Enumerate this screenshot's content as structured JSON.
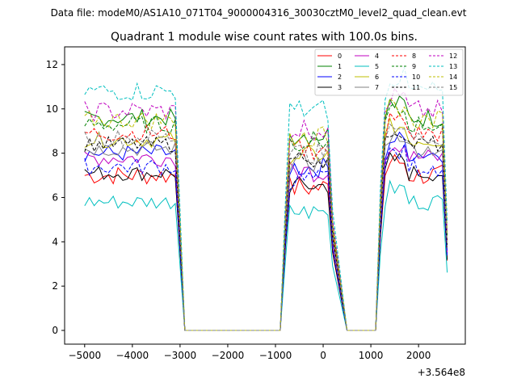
{
  "chart_data": {
    "type": "line",
    "suptitle": "Data file: modeM0/AS1A10_071T04_9000004316_30030cztM0_level2_quad_clean.evt",
    "title": "Quadrant 1 module wise count rates with 100.0s bins.",
    "xlabel": "",
    "ylabel": "",
    "offset_text": "+3.564e8",
    "xlim": [
      -5420,
      2980
    ],
    "ylim": [
      -0.62,
      12.8
    ],
    "xticks": [
      -5000,
      -4000,
      -3000,
      -2000,
      -1000,
      0,
      1000,
      2000
    ],
    "xtick_labels": [
      "−5000",
      "−4000",
      "−3000",
      "−2000",
      "−1000",
      "0",
      "1000",
      "2000"
    ],
    "yticks": [
      0,
      2,
      4,
      6,
      8,
      10,
      12
    ],
    "ytick_labels": [
      "0",
      "2",
      "4",
      "6",
      "8",
      "10",
      "12"
    ],
    "grid": false,
    "legend_position": "top-right",
    "legend_ncol": 4,
    "segments": [
      {
        "start": -5000,
        "end": -2900,
        "active_end": -3100
      },
      {
        "start": -800,
        "end": 200,
        "active_start": -800
      },
      {
        "start": 500,
        "end": 1200,
        "zero": true
      },
      {
        "start": 1200,
        "end": 2600,
        "active_start": 1300
      }
    ],
    "series": [
      {
        "name": "0",
        "color": "#ff0000",
        "dash": "solid",
        "level": 7.0,
        "amp": 0.45
      },
      {
        "name": "1",
        "color": "#008000",
        "dash": "solid",
        "level": 9.6,
        "amp": 0.4
      },
      {
        "name": "2",
        "color": "#0000ff",
        "dash": "solid",
        "level": 8.0,
        "amp": 0.4
      },
      {
        "name": "3",
        "color": "#000000",
        "dash": "solid",
        "level": 7.1,
        "amp": 0.35
      },
      {
        "name": "4",
        "color": "#c000c0",
        "dash": "solid",
        "level": 7.8,
        "amp": 0.4
      },
      {
        "name": "5",
        "color": "#00bfbf",
        "dash": "solid",
        "level": 5.8,
        "amp": 0.35
      },
      {
        "name": "6",
        "color": "#bfbf00",
        "dash": "solid",
        "level": 8.6,
        "amp": 0.35
      },
      {
        "name": "7",
        "color": "#808080",
        "dash": "solid",
        "level": 8.2,
        "amp": 0.35
      },
      {
        "name": "8",
        "color": "#ff0000",
        "dash": "dashed",
        "level": 8.9,
        "amp": 0.4
      },
      {
        "name": "9",
        "color": "#008000",
        "dash": "dashed",
        "level": 9.3,
        "amp": 0.4
      },
      {
        "name": "10",
        "color": "#0000ff",
        "dash": "dashed",
        "level": 7.4,
        "amp": 0.4
      },
      {
        "name": "11",
        "color": "#000000",
        "dash": "dashed",
        "level": 8.4,
        "amp": 0.35
      },
      {
        "name": "12",
        "color": "#c000c0",
        "dash": "dashed",
        "level": 9.9,
        "amp": 0.45
      },
      {
        "name": "13",
        "color": "#00bfbf",
        "dash": "dashed",
        "level": 10.8,
        "amp": 0.45
      },
      {
        "name": "14",
        "color": "#bfbf00",
        "dash": "dashed",
        "level": 9.5,
        "amp": 0.4
      },
      {
        "name": "15",
        "color": "#808080",
        "dash": "dashed",
        "level": 8.7,
        "amp": 0.4
      }
    ]
  }
}
